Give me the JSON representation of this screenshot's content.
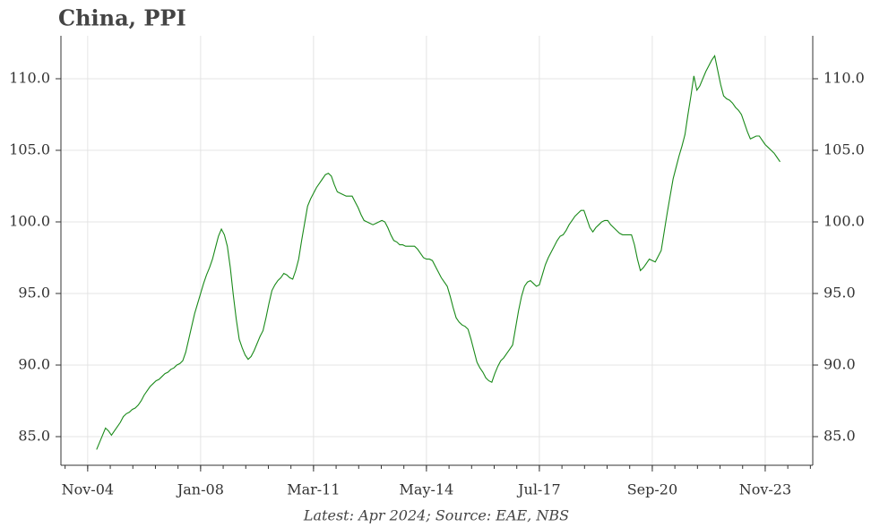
{
  "chart_data": {
    "type": "line",
    "title": "China, PPI",
    "caption": "Latest: Apr 2024; Source: EAE, NBS",
    "color": "#1a8a1a",
    "grid": true,
    "xlim": [
      "2004-02",
      "2025-03"
    ],
    "xticks": [
      {
        "value": "2004-11",
        "label": "Nov-04"
      },
      {
        "value": "2008-01",
        "label": "Jan-08"
      },
      {
        "value": "2011-03",
        "label": "Mar-11"
      },
      {
        "value": "2014-05",
        "label": "May-14"
      },
      {
        "value": "2017-07",
        "label": "Jul-17"
      },
      {
        "value": "2020-09",
        "label": "Sep-20"
      },
      {
        "value": "2023-11",
        "label": "Nov-23"
      }
    ],
    "ylim": [
      83,
      113
    ],
    "yticks": [
      {
        "value": 85,
        "label": "85.0"
      },
      {
        "value": 90,
        "label": "90.0"
      },
      {
        "value": 95,
        "label": "95.0"
      },
      {
        "value": 100,
        "label": "100.0"
      },
      {
        "value": 105,
        "label": "105.0"
      },
      {
        "value": 110,
        "label": "110.0"
      }
    ],
    "x": [
      "2005-02",
      "2005-03",
      "2005-04",
      "2005-05",
      "2005-06",
      "2005-07",
      "2005-08",
      "2005-09",
      "2005-10",
      "2005-11",
      "2005-12",
      "2006-01",
      "2006-02",
      "2006-03",
      "2006-04",
      "2006-05",
      "2006-06",
      "2006-07",
      "2006-08",
      "2006-09",
      "2006-10",
      "2006-11",
      "2006-12",
      "2007-01",
      "2007-02",
      "2007-03",
      "2007-04",
      "2007-05",
      "2007-06",
      "2007-07",
      "2007-08",
      "2007-09",
      "2007-10",
      "2007-11",
      "2007-12",
      "2008-01",
      "2008-02",
      "2008-03",
      "2008-04",
      "2008-05",
      "2008-06",
      "2008-07",
      "2008-08",
      "2008-09",
      "2008-10",
      "2008-11",
      "2008-12",
      "2009-01",
      "2009-02",
      "2009-03",
      "2009-04",
      "2009-05",
      "2009-06",
      "2009-07",
      "2009-08",
      "2009-09",
      "2009-10",
      "2009-11",
      "2009-12",
      "2010-01",
      "2010-02",
      "2010-03",
      "2010-04",
      "2010-05",
      "2010-06",
      "2010-07",
      "2010-08",
      "2010-09",
      "2010-10",
      "2010-11",
      "2010-12",
      "2011-01",
      "2011-02",
      "2011-03",
      "2011-04",
      "2011-05",
      "2011-06",
      "2011-07",
      "2011-08",
      "2011-09",
      "2011-10",
      "2011-11",
      "2011-12",
      "2012-01",
      "2012-02",
      "2012-03",
      "2012-04",
      "2012-05",
      "2012-06",
      "2012-07",
      "2012-08",
      "2012-09",
      "2012-10",
      "2012-11",
      "2012-12",
      "2013-01",
      "2013-02",
      "2013-03",
      "2013-04",
      "2013-05",
      "2013-06",
      "2013-07",
      "2013-08",
      "2013-09",
      "2013-10",
      "2013-11",
      "2013-12",
      "2014-01",
      "2014-02",
      "2014-03",
      "2014-04",
      "2014-05",
      "2014-06",
      "2014-07",
      "2014-08",
      "2014-09",
      "2014-10",
      "2014-11",
      "2014-12",
      "2015-01",
      "2015-02",
      "2015-03",
      "2015-04",
      "2015-05",
      "2015-06",
      "2015-07",
      "2015-08",
      "2015-09",
      "2015-10",
      "2015-11",
      "2015-12",
      "2016-01",
      "2016-02",
      "2016-03",
      "2016-04",
      "2016-05",
      "2016-06",
      "2016-07",
      "2016-08",
      "2016-09",
      "2016-10",
      "2016-11",
      "2016-12",
      "2017-01",
      "2017-02",
      "2017-03",
      "2017-04",
      "2017-05",
      "2017-06",
      "2017-07",
      "2017-08",
      "2017-09",
      "2017-10",
      "2017-11",
      "2017-12",
      "2018-01",
      "2018-02",
      "2018-03",
      "2018-04",
      "2018-05",
      "2018-06",
      "2018-07",
      "2018-08",
      "2018-09",
      "2018-10",
      "2018-11",
      "2018-12",
      "2019-01",
      "2019-02",
      "2019-03",
      "2019-04",
      "2019-05",
      "2019-06",
      "2019-07",
      "2019-08",
      "2019-09",
      "2019-10",
      "2019-11",
      "2019-12",
      "2020-01",
      "2020-02",
      "2020-03",
      "2020-04",
      "2020-05",
      "2020-06",
      "2020-07",
      "2020-08",
      "2020-09",
      "2020-10",
      "2020-11",
      "2020-12",
      "2021-01",
      "2021-02",
      "2021-03",
      "2021-04",
      "2021-05",
      "2021-06",
      "2021-07",
      "2021-08",
      "2021-09",
      "2021-10",
      "2021-11",
      "2021-12",
      "2022-01",
      "2022-02",
      "2022-03",
      "2022-04",
      "2022-05",
      "2022-06",
      "2022-07",
      "2022-08",
      "2022-09",
      "2022-10",
      "2022-11",
      "2022-12",
      "2023-01",
      "2023-02",
      "2023-03",
      "2023-04",
      "2023-05",
      "2023-06",
      "2023-07",
      "2023-08",
      "2023-09",
      "2023-10",
      "2023-11",
      "2023-12",
      "2024-01",
      "2024-02",
      "2024-03",
      "2024-04"
    ],
    "values": [
      84.1,
      84.6,
      85.1,
      85.6,
      85.4,
      85.1,
      85.4,
      85.7,
      86.0,
      86.4,
      86.6,
      86.7,
      86.9,
      87.0,
      87.2,
      87.5,
      87.9,
      88.2,
      88.5,
      88.7,
      88.9,
      89.0,
      89.2,
      89.4,
      89.5,
      89.7,
      89.8,
      90.0,
      90.1,
      90.3,
      90.9,
      91.8,
      92.7,
      93.6,
      94.3,
      95.0,
      95.7,
      96.3,
      96.8,
      97.4,
      98.2,
      99.0,
      99.5,
      99.1,
      98.3,
      96.8,
      94.9,
      93.2,
      91.8,
      91.2,
      90.7,
      90.4,
      90.6,
      91.0,
      91.5,
      92.0,
      92.4,
      93.3,
      94.3,
      95.2,
      95.6,
      95.9,
      96.1,
      96.4,
      96.3,
      96.1,
      96.0,
      96.6,
      97.4,
      98.7,
      99.9,
      101.1,
      101.6,
      102.0,
      102.4,
      102.7,
      103.0,
      103.3,
      103.4,
      103.2,
      102.6,
      102.1,
      102.0,
      101.9,
      101.8,
      101.8,
      101.8,
      101.4,
      101.0,
      100.5,
      100.1,
      100.0,
      99.9,
      99.8,
      99.9,
      100.0,
      100.1,
      100.0,
      99.6,
      99.1,
      98.7,
      98.6,
      98.4,
      98.4,
      98.3,
      98.3,
      98.3,
      98.3,
      98.1,
      97.8,
      97.5,
      97.4,
      97.4,
      97.3,
      96.9,
      96.5,
      96.1,
      95.8,
      95.5,
      94.8,
      94.0,
      93.3,
      93.0,
      92.8,
      92.7,
      92.5,
      91.8,
      91.0,
      90.2,
      89.8,
      89.5,
      89.1,
      88.9,
      88.8,
      89.4,
      89.9,
      90.3,
      90.5,
      90.8,
      91.1,
      91.4,
      92.6,
      93.8,
      94.8,
      95.5,
      95.8,
      95.9,
      95.7,
      95.5,
      95.6,
      96.3,
      97.0,
      97.5,
      97.9,
      98.3,
      98.7,
      99.0,
      99.1,
      99.4,
      99.8,
      100.1,
      100.4,
      100.6,
      100.8,
      100.8,
      100.2,
      99.6,
      99.3,
      99.6,
      99.8,
      100.0,
      100.1,
      100.1,
      99.8,
      99.6,
      99.4,
      99.2,
      99.1,
      99.1,
      99.1,
      99.1,
      98.4,
      97.4,
      96.6,
      96.8,
      97.1,
      97.4,
      97.3,
      97.2,
      97.6,
      98.0,
      99.3,
      100.6,
      101.8,
      103.0,
      103.8,
      104.6,
      105.3,
      106.1,
      107.5,
      108.8,
      110.2,
      109.2,
      109.5,
      110.0,
      110.5,
      110.9,
      111.3,
      111.6,
      110.6,
      109.6,
      108.8,
      108.6,
      108.5,
      108.3,
      108.0,
      107.8,
      107.5,
      106.9,
      106.3,
      105.8,
      105.9,
      106.0,
      106.0,
      105.7,
      105.4,
      105.2,
      105.0,
      104.8,
      104.5,
      104.2
    ]
  }
}
